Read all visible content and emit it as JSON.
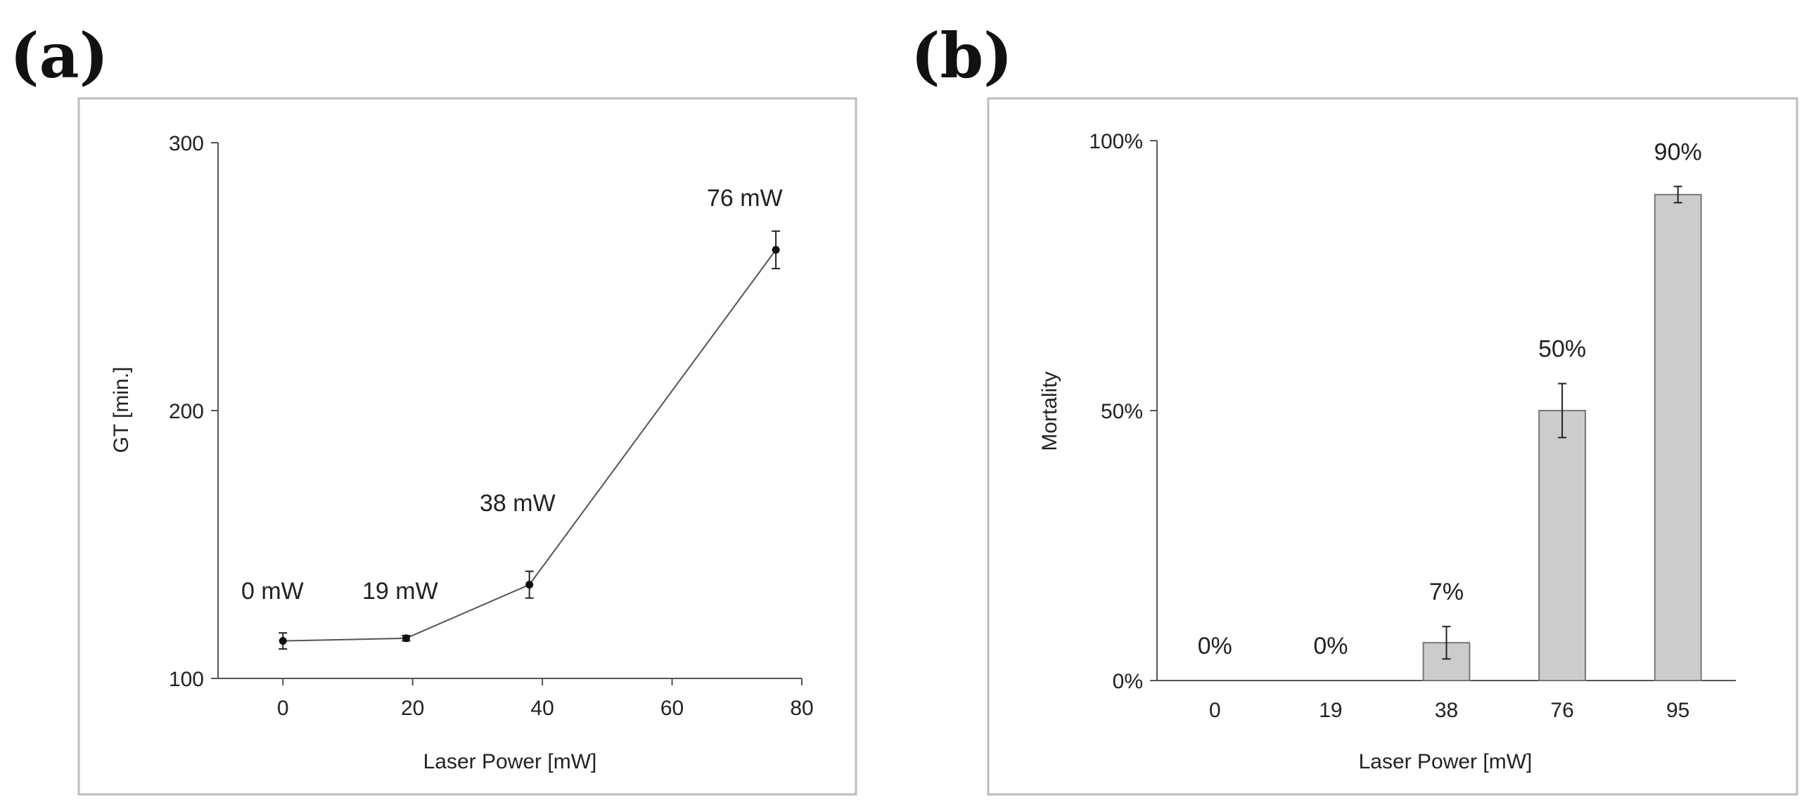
{
  "chart_data": [
    {
      "panel_label": "(a)",
      "type": "line",
      "title": "",
      "xlabel": "Laser Power [mW]",
      "ylabel": "GT [min.]",
      "xlim": [
        -10,
        80
      ],
      "ylim": [
        100,
        300
      ],
      "xticks": [
        0,
        20,
        40,
        60,
        80
      ],
      "yticks": [
        100,
        200,
        300
      ],
      "grid": false,
      "series": [
        {
          "name": "GT",
          "x": [
            0,
            19,
            38,
            76
          ],
          "y": [
            114,
            115,
            135,
            260
          ],
          "err": [
            3,
            1,
            5,
            7
          ],
          "color": "#555555"
        }
      ],
      "annotations": [
        "0 mW",
        "19 mW",
        "38 mW",
        "76 mW"
      ]
    },
    {
      "panel_label": "(b)",
      "type": "bar",
      "title": "",
      "xlabel": "Laser Power [mW]",
      "ylabel": "Mortality",
      "categories": [
        "0",
        "19",
        "38",
        "76",
        "95"
      ],
      "values": [
        0,
        0,
        7,
        50,
        90
      ],
      "err": [
        0,
        0,
        3,
        5,
        1.5
      ],
      "ylim": [
        0,
        100
      ],
      "yticks": [
        "0%",
        "50%",
        "100%"
      ],
      "ytick_values": [
        0,
        50,
        100
      ],
      "data_labels": [
        "0%",
        "0%",
        "7%",
        "50%",
        "90%"
      ],
      "grid": false,
      "bar_color": "#cccccc",
      "bar_edge_color": "#777777"
    }
  ]
}
